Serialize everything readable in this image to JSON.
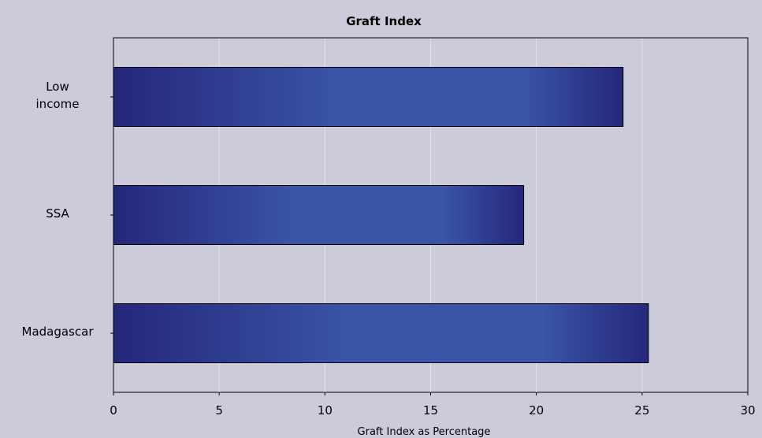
{
  "colors": {
    "background": "#cbcbda",
    "plot_background": "#cbcbda",
    "bar_dark": "#25277a",
    "bar_light": "#3a55a8",
    "bar_border": "#000000",
    "gridline": "#e2e2ea"
  },
  "chart_data": {
    "type": "bar",
    "orientation": "horizontal",
    "title": "Graft Index",
    "xlabel": "Graft Index as Percentage",
    "ylabel": "",
    "categories": [
      "Low income",
      "SSA",
      "Madagascar"
    ],
    "category_lines": [
      [
        "Low",
        "income"
      ],
      [
        "SSA"
      ],
      [
        "Madagascar"
      ]
    ],
    "values": [
      24.1,
      19.4,
      25.3
    ],
    "xlim": [
      0,
      30
    ],
    "xticks": [
      0,
      5,
      10,
      15,
      20,
      25,
      30
    ],
    "grid": true,
    "legend": "none"
  }
}
